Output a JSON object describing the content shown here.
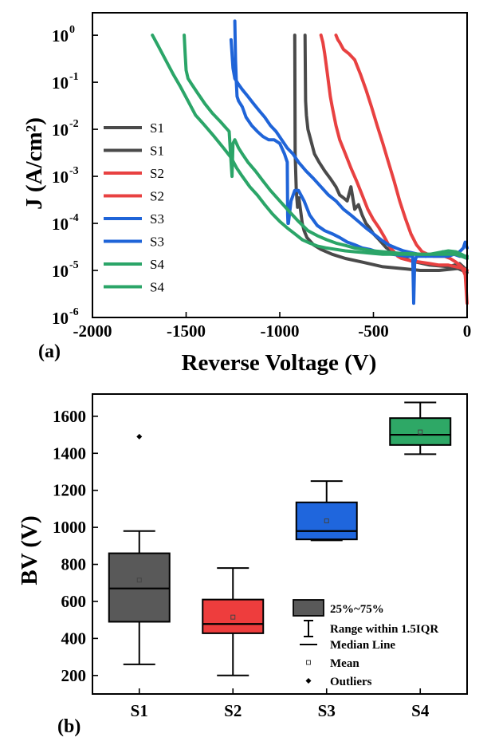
{
  "chart_data": [
    {
      "panel_label": "(a)",
      "type": "line",
      "xlabel": "Reverse Voltage (V)",
      "ylabel": "J (A/cm²)",
      "xlim": [
        -2000,
        0
      ],
      "ylim": [
        1e-06,
        3
      ],
      "y_scale": "log",
      "x_ticks": [
        -2000,
        -1500,
        -1000,
        -500,
        0
      ],
      "x_tick_labels": [
        "-2000",
        "-1500",
        "-1000",
        "-500",
        "0"
      ],
      "y_ticks": [
        1e-06,
        1e-05,
        0.0001,
        0.001,
        0.01,
        0.1,
        1
      ],
      "y_tick_labels": [
        {
          "base": "10",
          "exp": "-6"
        },
        {
          "base": "10",
          "exp": "-5"
        },
        {
          "base": "10",
          "exp": "-4"
        },
        {
          "base": "10",
          "exp": "-3"
        },
        {
          "base": "10",
          "exp": "-2"
        },
        {
          "base": "10",
          "exp": "-1"
        },
        {
          "base": "10",
          "exp": "0"
        }
      ],
      "legend_position": "left",
      "series": [
        {
          "name": "S1",
          "color": "#4a4a4a",
          "x": [
            -920,
            -918,
            -912,
            -905,
            -898,
            -893,
            -890,
            -880,
            -870,
            -855,
            -820,
            -780,
            -720,
            -650,
            -560,
            -450,
            -350,
            -250,
            -150,
            -50,
            0
          ],
          "y": [
            1.0,
            0.003,
            0.0005,
            0.00022,
            0.00035,
            0.00025,
            0.0002,
            0.0001,
            7e-05,
            5e-05,
            3.5e-05,
            2.8e-05,
            2.2e-05,
            1.8e-05,
            1.5e-05,
            1.2e-05,
            1.1e-05,
            1e-05,
            1e-05,
            1.1e-05,
            9e-06
          ]
        },
        {
          "name": "S1",
          "color": "#4a4a4a",
          "x": [
            -865,
            -862,
            -858,
            -850,
            -835,
            -815,
            -790,
            -760,
            -730,
            -700,
            -680,
            -660,
            -640,
            -620,
            -600,
            -580,
            -560,
            -540,
            -520,
            -500,
            -470,
            -430,
            -380,
            -300,
            -200,
            -100,
            -40,
            0
          ],
          "y": [
            1.0,
            0.04,
            0.02,
            0.01,
            0.006,
            0.003,
            0.002,
            0.0013,
            0.0009,
            0.0006,
            0.0004,
            0.00035,
            0.0003,
            0.0006,
            0.0002,
            0.00025,
            0.00015,
            0.0001,
            8e-05,
            6e-05,
            4.5e-05,
            3e-05,
            2.2e-05,
            1.6e-05,
            1.3e-05,
            1.2e-05,
            1.4e-05,
            1e-05
          ]
        },
        {
          "name": "S2",
          "color": "#e84141",
          "x": [
            -780,
            -770,
            -760,
            -750,
            -740,
            -730,
            -720,
            -700,
            -680,
            -650,
            -620,
            -590,
            -560,
            -530,
            -500,
            -470,
            -440,
            -410,
            -390,
            -370,
            -350,
            -300,
            -250,
            -200,
            -150,
            -100,
            -60,
            -20,
            0
          ],
          "y": [
            1.0,
            0.7,
            0.4,
            0.2,
            0.1,
            0.05,
            0.03,
            0.012,
            0.006,
            0.003,
            0.0015,
            0.0008,
            0.0004,
            0.0002,
            0.00012,
            8e-05,
            5e-05,
            3e-05,
            2.5e-05,
            2e-05,
            1.8e-05,
            1.6e-05,
            1.5e-05,
            1.4e-05,
            1.3e-05,
            1.3e-05,
            1.2e-05,
            1.1e-05,
            1e-05
          ]
        },
        {
          "name": "S2",
          "color": "#e84141",
          "x": [
            -700,
            -690,
            -680,
            -660,
            -630,
            -600,
            -570,
            -540,
            -510,
            -480,
            -450,
            -420,
            -390,
            -360,
            -330,
            -300,
            -270,
            -240,
            -210,
            -180,
            -150,
            -120,
            -90,
            -60,
            -30,
            -10,
            0
          ],
          "y": [
            1.0,
            0.8,
            0.7,
            0.5,
            0.4,
            0.3,
            0.15,
            0.07,
            0.03,
            0.012,
            0.005,
            0.002,
            0.0008,
            0.0003,
            0.00013,
            6e-05,
            3.5e-05,
            2.5e-05,
            2.2e-05,
            2e-05,
            2e-05,
            2e-05,
            1.8e-05,
            1.5e-05,
            1.2e-05,
            8e-06,
            2e-06
          ]
        },
        {
          "name": "S3",
          "color": "#1f64d8",
          "x": [
            -1240,
            -1236,
            -1232,
            -1228,
            -1220,
            -1200,
            -1180,
            -1150,
            -1120,
            -1090,
            -1060,
            -1030,
            -1000,
            -975,
            -960,
            -958,
            -956,
            -954,
            -940,
            -920,
            -900,
            -870,
            -840,
            -800,
            -760,
            -720,
            -680,
            -640,
            -600,
            -560,
            -520,
            -480,
            -440,
            -400,
            -360,
            -320,
            -290,
            -285,
            -280,
            -270,
            -250,
            -220,
            -190,
            -160,
            -130,
            -100,
            -70,
            -40,
            -20,
            0
          ],
          "y": [
            2.0,
            0.3,
            0.1,
            0.05,
            0.04,
            0.03,
            0.018,
            0.012,
            0.009,
            0.007,
            0.006,
            0.006,
            0.005,
            0.003,
            0.002,
            0.00015,
            0.0001,
            0.0001,
            0.0003,
            0.0005,
            0.0005,
            0.0003,
            0.00015,
            9e-05,
            7e-05,
            6e-05,
            5e-05,
            4e-05,
            3.5e-05,
            3e-05,
            2.8e-05,
            2.5e-05,
            2.3e-05,
            2.2e-05,
            2.1e-05,
            2e-05,
            2e-05,
            2e-06,
            1.5e-05,
            2e-05,
            2e-05,
            2e-05,
            2.2e-05,
            2.2e-05,
            2.5e-05,
            2.5e-05,
            2.2e-05,
            2e-05,
            2e-05,
            2e-05
          ]
        },
        {
          "name": "S3",
          "color": "#1f64d8",
          "x": [
            -1260,
            -1250,
            -1240,
            -1220,
            -1200,
            -1170,
            -1140,
            -1110,
            -1080,
            -1050,
            -1020,
            -990,
            -960,
            -930,
            -900,
            -860,
            -820,
            -780,
            -740,
            -700,
            -660,
            -620,
            -580,
            -540,
            -500,
            -460,
            -420,
            -380,
            -340,
            -300,
            -260,
            -220,
            -180,
            -140,
            -100,
            -70,
            -40,
            -20,
            -10,
            0
          ],
          "y": [
            0.8,
            0.2,
            0.12,
            0.09,
            0.07,
            0.05,
            0.035,
            0.025,
            0.018,
            0.012,
            0.009,
            0.006,
            0.004,
            0.003,
            0.002,
            0.0013,
            0.0009,
            0.0006,
            0.0004,
            0.0003,
            0.0002,
            0.00015,
            0.00011,
            8e-05,
            6e-05,
            4.5e-05,
            3.5e-05,
            3e-05,
            2.6e-05,
            2.4e-05,
            2.2e-05,
            2e-05,
            2e-05,
            2e-05,
            2e-05,
            2.2e-05,
            2.5e-05,
            3e-05,
            4e-05,
            3e-05
          ]
        },
        {
          "name": "S4",
          "color": "#2ba568",
          "x": [
            -1680,
            -1650,
            -1610,
            -1570,
            -1530,
            -1490,
            -1450,
            -1400,
            -1350,
            -1300,
            -1260,
            -1230,
            -1200,
            -1160,
            -1120,
            -1080,
            -1040,
            -1000,
            -960,
            -920,
            -880,
            -840,
            -800,
            -750,
            -700,
            -650,
            -600,
            -550,
            -500,
            -450,
            -400,
            -350,
            -300,
            -250,
            -200,
            -150,
            -100,
            -60,
            -30,
            -10,
            0
          ],
          "y": [
            1.0,
            0.6,
            0.3,
            0.15,
            0.08,
            0.04,
            0.02,
            0.012,
            0.007,
            0.004,
            0.0025,
            0.0015,
            0.001,
            0.0006,
            0.0004,
            0.00025,
            0.00016,
            0.00011,
            8e-05,
            6e-05,
            4.5e-05,
            3.8e-05,
            3.3e-05,
            3e-05,
            2.8e-05,
            2.6e-05,
            2.5e-05,
            2.4e-05,
            2.3e-05,
            2.2e-05,
            2.2e-05,
            2.2e-05,
            2.2e-05,
            2.2e-05,
            2.2e-05,
            2.4e-05,
            2.6e-05,
            2.5e-05,
            2.2e-05,
            2e-05,
            2e-05
          ]
        },
        {
          "name": "S4",
          "color": "#2ba568",
          "x": [
            -1510,
            -1505,
            -1500,
            -1490,
            -1470,
            -1440,
            -1400,
            -1360,
            -1320,
            -1290,
            -1270,
            -1260,
            -1255,
            -1250,
            -1240,
            -1220,
            -1200,
            -1170,
            -1130,
            -1090,
            -1050,
            -1000,
            -950,
            -900,
            -850,
            -800,
            -750,
            -700,
            -650,
            -600,
            -550,
            -500,
            -450,
            -400,
            -350,
            -300,
            -250,
            -200,
            -150,
            -100,
            -60,
            -30,
            0
          ],
          "y": [
            1.0,
            0.4,
            0.18,
            0.12,
            0.09,
            0.06,
            0.035,
            0.022,
            0.015,
            0.011,
            0.009,
            0.002,
            0.001,
            0.005,
            0.006,
            0.004,
            0.003,
            0.002,
            0.0013,
            0.0008,
            0.0005,
            0.0003,
            0.00018,
            0.00011,
            7e-05,
            5.5e-05,
            4.5e-05,
            3.8e-05,
            3.4e-05,
            3e-05,
            2.8e-05,
            2.6e-05,
            2.5e-05,
            2.4e-05,
            2.3e-05,
            2.3e-05,
            2.2e-05,
            2.2e-05,
            2.2e-05,
            2.2e-05,
            2.2e-05,
            2e-05,
            1.8e-05
          ]
        }
      ]
    },
    {
      "panel_label": "(b)",
      "type": "box",
      "xlabel": "",
      "ylabel": "BV (V)",
      "ylim": [
        100,
        1720
      ],
      "y_ticks": [
        200,
        400,
        600,
        800,
        1000,
        1200,
        1400,
        1600
      ],
      "y_tick_labels": [
        "200",
        "400",
        "600",
        "800",
        "1000",
        "1200",
        "1400",
        "1600"
      ],
      "categories": [
        "S1",
        "S2",
        "S3",
        "S4"
      ],
      "boxes": [
        {
          "name": "S1",
          "color": "#595959",
          "whisker_low": 260,
          "q1": 490,
          "median": 670,
          "q3": 860,
          "whisker_high": 980,
          "mean": 715,
          "outliers": [
            1490
          ]
        },
        {
          "name": "S2",
          "color": "#ee3d3d",
          "whisker_low": 200,
          "q1": 428,
          "median": 478,
          "q3": 610,
          "whisker_high": 780,
          "mean": 515,
          "outliers": []
        },
        {
          "name": "S3",
          "color": "#1f66dd",
          "whisker_low": 930,
          "q1": 935,
          "median": 980,
          "q3": 1135,
          "whisker_high": 1250,
          "mean": 1035,
          "outliers": []
        },
        {
          "name": "S4",
          "color": "#2ea866",
          "whisker_low": 1395,
          "q1": 1445,
          "median": 1500,
          "q3": 1590,
          "whisker_high": 1675,
          "mean": 1515,
          "outliers": []
        }
      ],
      "legend_position": "bottom-right",
      "legend": {
        "box": "25%~75%",
        "range": "Range within 1.5IQR",
        "median": "Median Line",
        "mean": "Mean",
        "outliers": "Outliers"
      }
    }
  ]
}
